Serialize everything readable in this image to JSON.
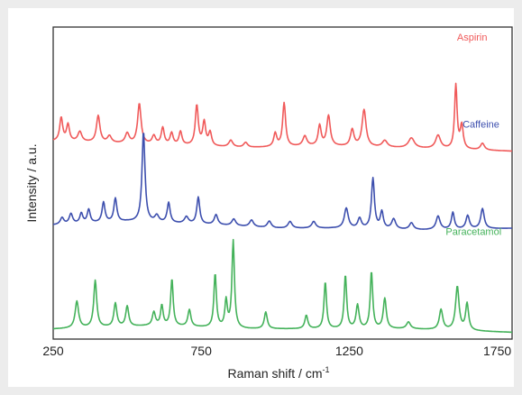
{
  "chart_data": {
    "type": "line",
    "title": "",
    "xlabel": "Raman shift / cm",
    "xlabel_sup": "-1",
    "ylabel": "Intensity / a.u.",
    "xlim": [
      250,
      1800
    ],
    "xticks": [
      "250",
      "750",
      "1250",
      "1750"
    ],
    "xtick_values": [
      250,
      750,
      1250,
      1750
    ],
    "grid": false,
    "legend": "labels beside each trace (right side)",
    "y_units": "arbitrary units; traces vertically offset, peak heights relative",
    "series": [
      {
        "name": "Aspirin",
        "color": "#f05a5a",
        "offset": 0.54,
        "baseline": [
          [
            250,
            0.02
          ],
          [
            560,
            0.01
          ],
          [
            900,
            0.0
          ],
          [
            1150,
            0.005
          ],
          [
            1400,
            0.0
          ],
          [
            1800,
            -0.01
          ]
        ],
        "peaks": [
          [
            277,
            0.07,
            6
          ],
          [
            300,
            0.05,
            6
          ],
          [
            340,
            0.03,
            8
          ],
          [
            402,
            0.08,
            7
          ],
          [
            440,
            0.02,
            8
          ],
          [
            500,
            0.03,
            8
          ],
          [
            541,
            0.12,
            7
          ],
          [
            590,
            0.025,
            7
          ],
          [
            620,
            0.05,
            6
          ],
          [
            650,
            0.035,
            6
          ],
          [
            680,
            0.04,
            6
          ],
          [
            735,
            0.12,
            6
          ],
          [
            760,
            0.07,
            6
          ],
          [
            780,
            0.04,
            6
          ],
          [
            850,
            0.02,
            8
          ],
          [
            900,
            0.015,
            8
          ],
          [
            1000,
            0.04,
            6
          ],
          [
            1030,
            0.13,
            6
          ],
          [
            1100,
            0.03,
            8
          ],
          [
            1150,
            0.06,
            6
          ],
          [
            1180,
            0.09,
            7
          ],
          [
            1260,
            0.05,
            7
          ],
          [
            1300,
            0.11,
            8
          ],
          [
            1370,
            0.02,
            10
          ],
          [
            1460,
            0.03,
            12
          ],
          [
            1550,
            0.04,
            10
          ],
          [
            1610,
            0.19,
            5
          ],
          [
            1630,
            0.07,
            6
          ],
          [
            1700,
            0.02,
            8
          ]
        ]
      },
      {
        "name": "Caffeine",
        "color": "#3d4fae",
        "offset": 0.28,
        "baseline": [
          [
            250,
            0.03
          ],
          [
            500,
            0.04
          ],
          [
            800,
            0.03
          ],
          [
            1000,
            0.02
          ],
          [
            1200,
            0.02
          ],
          [
            1500,
            0.015
          ],
          [
            1800,
            0.02
          ]
        ],
        "peaks": [
          [
            280,
            0.02,
            7
          ],
          [
            310,
            0.03,
            7
          ],
          [
            345,
            0.03,
            6
          ],
          [
            370,
            0.04,
            6
          ],
          [
            420,
            0.06,
            6
          ],
          [
            460,
            0.07,
            6
          ],
          [
            555,
            0.27,
            6
          ],
          [
            600,
            0.02,
            8
          ],
          [
            640,
            0.06,
            6
          ],
          [
            700,
            0.02,
            8
          ],
          [
            740,
            0.08,
            6
          ],
          [
            800,
            0.03,
            7
          ],
          [
            860,
            0.02,
            8
          ],
          [
            920,
            0.02,
            8
          ],
          [
            980,
            0.02,
            8
          ],
          [
            1050,
            0.02,
            8
          ],
          [
            1130,
            0.02,
            8
          ],
          [
            1240,
            0.06,
            8
          ],
          [
            1285,
            0.03,
            7
          ],
          [
            1330,
            0.15,
            6
          ],
          [
            1360,
            0.05,
            6
          ],
          [
            1400,
            0.03,
            8
          ],
          [
            1460,
            0.02,
            8
          ],
          [
            1550,
            0.04,
            8
          ],
          [
            1600,
            0.05,
            6
          ],
          [
            1650,
            0.04,
            7
          ],
          [
            1700,
            0.06,
            7
          ]
        ]
      },
      {
        "name": "Paracetamol",
        "color": "#44b25a",
        "offset": 0.0,
        "baseline": [
          [
            250,
            0.0
          ],
          [
            600,
            0.01
          ],
          [
            900,
            0.0
          ],
          [
            1150,
            0.0
          ],
          [
            1450,
            0.0
          ],
          [
            1800,
            -0.01
          ]
        ],
        "peaks": [
          [
            330,
            0.08,
            7
          ],
          [
            392,
            0.14,
            6
          ],
          [
            460,
            0.07,
            6
          ],
          [
            500,
            0.06,
            6
          ],
          [
            590,
            0.04,
            6
          ],
          [
            617,
            0.06,
            5
          ],
          [
            651,
            0.14,
            5
          ],
          [
            710,
            0.05,
            6
          ],
          [
            797,
            0.16,
            5
          ],
          [
            834,
            0.08,
            5
          ],
          [
            858,
            0.26,
            5
          ],
          [
            968,
            0.05,
            6
          ],
          [
            1105,
            0.04,
            6
          ],
          [
            1169,
            0.14,
            5
          ],
          [
            1237,
            0.16,
            5
          ],
          [
            1278,
            0.07,
            6
          ],
          [
            1325,
            0.17,
            5
          ],
          [
            1370,
            0.09,
            6
          ],
          [
            1450,
            0.02,
            8
          ],
          [
            1560,
            0.06,
            7
          ],
          [
            1615,
            0.13,
            7
          ],
          [
            1648,
            0.08,
            6
          ]
        ]
      }
    ],
    "y_range": [
      -0.03,
      0.9
    ]
  }
}
